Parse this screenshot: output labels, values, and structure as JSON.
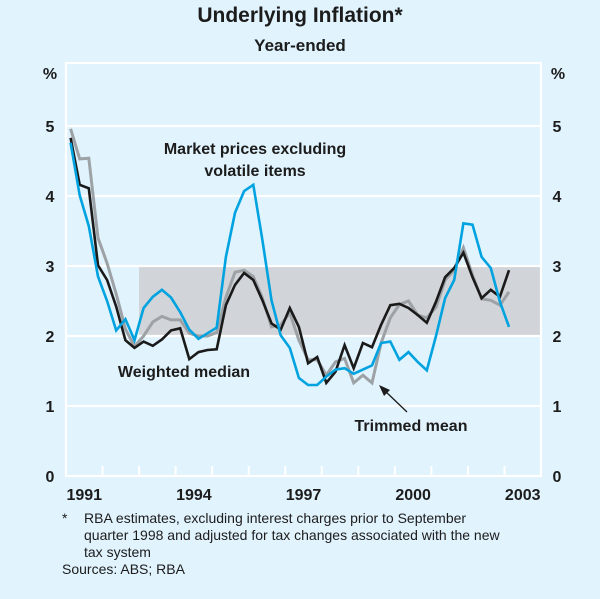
{
  "header": {
    "title": "Underlying Inflation*",
    "subtitle": "Year-ended"
  },
  "footnote": {
    "marker": "*",
    "text": "RBA estimates, excluding interest charges prior to September quarter 1998 and adjusted for tax changes associated with the new tax system",
    "sources": "Sources: ABS; RBA"
  },
  "colors": {
    "background": "#e1f3fd",
    "market_prices": "#00a3e0",
    "weighted_median": "#1a1a1a",
    "trimmed_mean": "#9ca2a6",
    "target_band": "#d1d4d8",
    "gridline": "#ffffff"
  },
  "chart_data": {
    "type": "line",
    "title": "Underlying Inflation*",
    "subtitle": "Year-ended",
    "xlabel": "",
    "ylabel": "%",
    "ylabel_right": "%",
    "ylim": [
      0,
      5.9
    ],
    "yticks": [
      0,
      1,
      2,
      3,
      4,
      5
    ],
    "xlim": [
      1991,
      2004
    ],
    "xtick_labels": [
      "1991",
      "1994",
      "1997",
      "2000",
      "2003"
    ],
    "frequency": "quarterly",
    "x_start": "1991 Q1",
    "x_end": "2003 Q1",
    "grid": true,
    "shaded_band": {
      "y_from": 2,
      "y_to": 3,
      "x_from": 1993.0,
      "x_to": 2004.0
    },
    "annotations": [
      {
        "text": "Market prices excluding volatile items",
        "series": "Market prices excluding volatile items",
        "arrow": false
      },
      {
        "text": "Weighted median",
        "series": "Weighted median",
        "arrow": false
      },
      {
        "text": "Trimmed mean",
        "series": "Trimmed mean",
        "arrow": true
      }
    ],
    "series": [
      {
        "name": "Market prices excluding volatile items",
        "values": [
          4.76,
          4.01,
          3.57,
          2.85,
          2.5,
          2.08,
          2.24,
          1.94,
          2.4,
          2.56,
          2.66,
          2.55,
          2.34,
          2.09,
          1.96,
          2.04,
          2.12,
          3.13,
          3.76,
          4.07,
          4.16,
          3.37,
          2.51,
          2.01,
          1.83,
          1.4,
          1.3,
          1.3,
          1.42,
          1.52,
          1.54,
          1.46,
          1.52,
          1.58,
          1.9,
          1.92,
          1.66,
          1.77,
          1.63,
          1.51,
          2.0,
          2.54,
          2.8,
          3.61,
          3.59,
          3.13,
          2.97,
          2.49,
          2.13
        ]
      },
      {
        "name": "Weighted median",
        "values": [
          4.83,
          4.16,
          4.11,
          3.01,
          2.8,
          2.42,
          1.94,
          1.83,
          1.92,
          1.86,
          1.95,
          2.08,
          2.11,
          1.67,
          1.77,
          1.8,
          1.81,
          2.44,
          2.73,
          2.9,
          2.8,
          2.51,
          2.18,
          2.09,
          2.4,
          2.13,
          1.61,
          1.7,
          1.33,
          1.49,
          1.87,
          1.54,
          1.9,
          1.84,
          2.16,
          2.44,
          2.46,
          2.4,
          2.3,
          2.19,
          2.49,
          2.84,
          2.97,
          3.19,
          2.84,
          2.54,
          2.66,
          2.56,
          2.94
        ]
      },
      {
        "name": "Trimmed mean",
        "values": [
          4.96,
          4.53,
          4.54,
          3.4,
          3.04,
          2.6,
          2.1,
          1.85,
          2.0,
          2.2,
          2.28,
          2.23,
          2.23,
          2.04,
          2.0,
          2.0,
          2.05,
          2.55,
          2.91,
          2.94,
          2.85,
          2.54,
          2.13,
          2.16,
          2.33,
          1.94,
          1.66,
          1.66,
          1.44,
          1.63,
          1.68,
          1.33,
          1.44,
          1.33,
          1.9,
          2.26,
          2.45,
          2.5,
          2.3,
          2.26,
          2.41,
          2.8,
          2.94,
          3.26,
          2.87,
          2.53,
          2.51,
          2.44,
          2.63
        ]
      }
    ]
  }
}
